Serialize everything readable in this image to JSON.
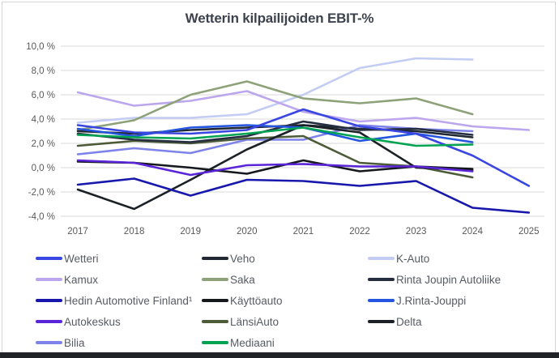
{
  "chart_data": {
    "type": "line",
    "title": "Wetterin kilpailijoiden EBIT-%",
    "x": [
      2017,
      2018,
      2019,
      2020,
      2021,
      2022,
      2023,
      2024,
      2025
    ],
    "x_tick_labels": [
      "2017",
      "2018",
      "2019",
      "2020",
      "2021",
      "2022",
      "2023",
      "2024",
      "2025"
    ],
    "y_ticks": [
      10,
      8,
      6,
      4,
      2,
      0,
      -2,
      -4
    ],
    "y_tick_labels": [
      "10,0 %",
      "8,0 %",
      "6,0 %",
      "4,0 %",
      "2,0 %",
      "0,0 %",
      "-2,0 %",
      "-4,0 %"
    ],
    "ylim": [
      -4,
      10
    ],
    "unit": "%",
    "grid": "horizontal",
    "legend_position": "bottom",
    "series": [
      {
        "name": "Wetteri",
        "color": "#3a46e1",
        "values": [
          3.5,
          2.9,
          2.8,
          3.1,
          4.8,
          3.4,
          2.8,
          1.0,
          -1.5
        ]
      },
      {
        "name": "Veho",
        "color": "#202833",
        "values": [
          3.0,
          2.8,
          3.1,
          3.3,
          3.5,
          3.2,
          3.0,
          2.5,
          null
        ]
      },
      {
        "name": "K-Auto",
        "color": "#c3cdf4",
        "values": [
          3.7,
          4.1,
          4.1,
          4.4,
          6.0,
          8.2,
          9.0,
          8.9,
          null
        ]
      },
      {
        "name": "Kamux",
        "color": "#bca6ee",
        "values": [
          6.2,
          5.1,
          5.5,
          6.3,
          4.6,
          3.8,
          4.1,
          3.4,
          3.1
        ]
      },
      {
        "name": "Saka",
        "color": "#8da279",
        "values": [
          3.1,
          3.9,
          6.0,
          7.1,
          5.7,
          5.3,
          5.7,
          4.4,
          null
        ]
      },
      {
        "name": "Rinta Joupin Autoliike",
        "color": "#252e40",
        "values": [
          2.8,
          2.3,
          2.1,
          2.6,
          3.8,
          3.1,
          3.2,
          2.7,
          null
        ]
      },
      {
        "name": "Hedin Automotive Finland¹",
        "color": "#1718ab",
        "values": [
          -1.4,
          -0.9,
          -2.3,
          -1.0,
          -1.1,
          -1.5,
          -1.1,
          -3.3,
          -3.7
        ]
      },
      {
        "name": "Käyttöauto",
        "color": "#15181d",
        "values": [
          0.5,
          0.4,
          0.0,
          -0.5,
          0.6,
          -0.3,
          0.1,
          -0.1,
          null
        ]
      },
      {
        "name": "J.Rinta-Jouppi",
        "color": "#2455de",
        "values": [
          3.2,
          2.6,
          3.3,
          3.5,
          3.3,
          2.2,
          2.8,
          2.1,
          null
        ]
      },
      {
        "name": "Autokeskus",
        "color": "#5a24d8",
        "values": [
          0.6,
          0.4,
          -0.6,
          0.2,
          0.3,
          0.1,
          0.1,
          -0.3,
          null
        ]
      },
      {
        "name": "LänsiAuto",
        "color": "#4c5b38",
        "values": [
          1.8,
          2.2,
          2.0,
          2.4,
          2.6,
          0.4,
          0.1,
          -0.8,
          null
        ]
      },
      {
        "name": "Delta",
        "color": "#1c2127",
        "values": [
          -1.8,
          -3.4,
          -1.0,
          1.5,
          3.5,
          2.9,
          0.0,
          -0.2,
          null
        ]
      },
      {
        "name": "Bilia",
        "color": "#7e83ea",
        "values": [
          1.1,
          1.6,
          1.2,
          2.3,
          2.3,
          3.5,
          3.2,
          3.0,
          null
        ]
      },
      {
        "name": "Mediaani",
        "color": "#00a351",
        "values": [
          2.7,
          2.5,
          2.4,
          2.8,
          3.3,
          2.5,
          1.8,
          1.9,
          null
        ]
      }
    ]
  }
}
